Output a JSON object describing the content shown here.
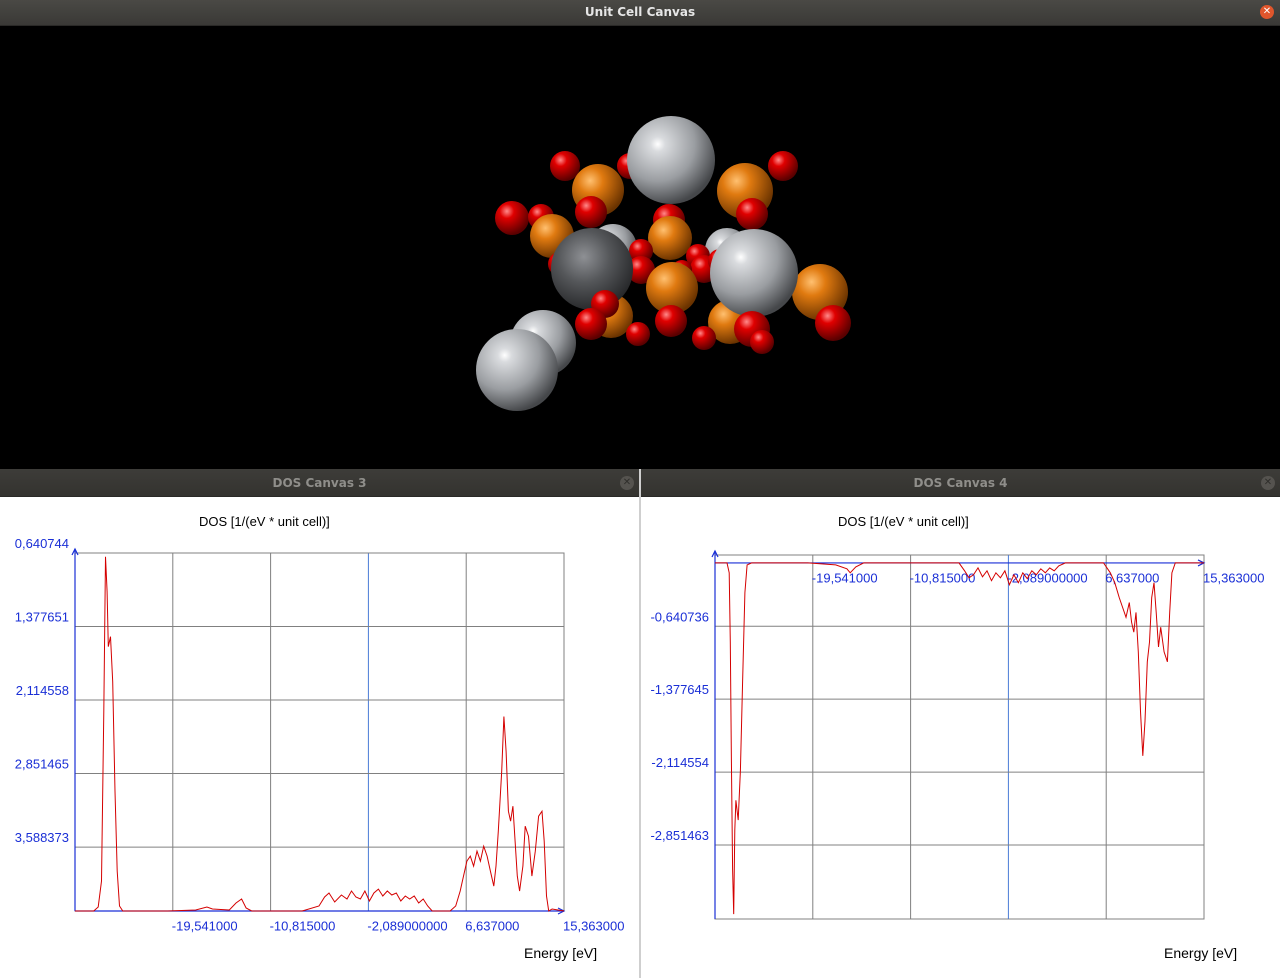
{
  "window": {
    "title": "Unit Cell Canvas"
  },
  "colors": {
    "dos_line": "#d40000",
    "axis": "#1a2fd6",
    "grid": "#808080",
    "fermi": "#4a7ad6",
    "atom_gray": "#b9bcc0",
    "atom_orange": "#e07a10",
    "atom_red": "#cc0000"
  },
  "icons": {
    "close": "close-icon"
  },
  "dos3": {
    "window_title": "DOS Canvas 3",
    "chart_title": "DOS [1/(eV * unit cell)]",
    "xlabel": "Energy [eV]",
    "x_ticks": [
      "-19,541000",
      "-10,815000",
      "-2,089000000",
      "6,637000",
      "15,363000"
    ],
    "y_ticks": [
      "3,588373",
      "2,851465",
      "2,114558",
      "1,377651",
      "0,640744"
    ]
  },
  "dos4": {
    "window_title": "DOS Canvas 4",
    "chart_title": "DOS [1/(eV * unit cell)]",
    "xlabel": "Energy [eV]",
    "x_ticks": [
      "-19,541000",
      "-10,815000",
      "-2,089000000",
      "6,637000",
      "15,363000"
    ],
    "y_ticks": [
      "-0,640736",
      "-1,377645",
      "-2,114554",
      "-2,851463"
    ]
  },
  "chart_data": [
    {
      "type": "line",
      "title": "DOS [1/(eV * unit cell)]",
      "xlabel": "Energy [eV]",
      "ylabel": "",
      "xlim": [
        -28.267,
        15.363
      ],
      "ylim": [
        0,
        3.588373
      ],
      "grid": true,
      "x_ticks": [
        -19.541,
        -10.815,
        -2.089,
        6.637,
        15.363
      ],
      "y_ticks": [
        0.640744,
        1.377651,
        2.114558,
        2.851465,
        3.588373
      ],
      "series": [
        {
          "values": [
            [
              -28.27,
              0
            ],
            [
              -26.6,
              0
            ],
            [
              -26.2,
              0.04
            ],
            [
              -25.9,
              0.3
            ],
            [
              -25.7,
              2.0
            ],
            [
              -25.55,
              3.55
            ],
            [
              -25.4,
              3.2
            ],
            [
              -25.3,
              2.65
            ],
            [
              -25.1,
              2.75
            ],
            [
              -24.9,
              2.3
            ],
            [
              -24.7,
              1.2
            ],
            [
              -24.5,
              0.4
            ],
            [
              -24.3,
              0.05
            ],
            [
              -24.0,
              0
            ],
            [
              -20.0,
              0
            ],
            [
              -17.5,
              0.01
            ],
            [
              -16.5,
              0.04
            ],
            [
              -16.0,
              0.02
            ],
            [
              -14.5,
              0.01
            ],
            [
              -13.9,
              0.08
            ],
            [
              -13.4,
              0.12
            ],
            [
              -13.0,
              0.03
            ],
            [
              -12.5,
              0
            ],
            [
              -8.0,
              0
            ],
            [
              -6.5,
              0.05
            ],
            [
              -6.0,
              0.14
            ],
            [
              -5.6,
              0.18
            ],
            [
              -5.1,
              0.09
            ],
            [
              -4.5,
              0.16
            ],
            [
              -4.0,
              0.12
            ],
            [
              -3.6,
              0.2
            ],
            [
              -3.2,
              0.14
            ],
            [
              -2.8,
              0.12
            ],
            [
              -2.4,
              0.2
            ],
            [
              -2.0,
              0.1
            ],
            [
              -1.6,
              0.18
            ],
            [
              -1.2,
              0.22
            ],
            [
              -0.8,
              0.15
            ],
            [
              -0.4,
              0.2
            ],
            [
              0,
              0.16
            ],
            [
              0.4,
              0.18
            ],
            [
              0.8,
              0.1
            ],
            [
              1.2,
              0.15
            ],
            [
              1.6,
              0.12
            ],
            [
              2.0,
              0.15
            ],
            [
              2.4,
              0.08
            ],
            [
              2.8,
              0.12
            ],
            [
              3.2,
              0.05
            ],
            [
              3.6,
              0
            ],
            [
              5.2,
              0
            ],
            [
              5.7,
              0.05
            ],
            [
              6.1,
              0.2
            ],
            [
              6.4,
              0.35
            ],
            [
              6.7,
              0.5
            ],
            [
              7.0,
              0.55
            ],
            [
              7.3,
              0.45
            ],
            [
              7.6,
              0.6
            ],
            [
              7.9,
              0.5
            ],
            [
              8.2,
              0.65
            ],
            [
              8.5,
              0.55
            ],
            [
              8.8,
              0.4
            ],
            [
              9.1,
              0.25
            ],
            [
              9.3,
              0.45
            ],
            [
              9.5,
              0.8
            ],
            [
              9.8,
              1.4
            ],
            [
              10.0,
              1.95
            ],
            [
              10.2,
              1.6
            ],
            [
              10.4,
              1.0
            ],
            [
              10.6,
              0.9
            ],
            [
              10.8,
              1.05
            ],
            [
              11.0,
              0.7
            ],
            [
              11.2,
              0.35
            ],
            [
              11.4,
              0.2
            ],
            [
              11.7,
              0.45
            ],
            [
              11.9,
              0.85
            ],
            [
              12.2,
              0.75
            ],
            [
              12.5,
              0.35
            ],
            [
              12.8,
              0.6
            ],
            [
              13.1,
              0.95
            ],
            [
              13.4,
              1.0
            ],
            [
              13.6,
              0.7
            ],
            [
              13.8,
              0.15
            ],
            [
              14.0,
              0
            ],
            [
              14.3,
              0.02
            ],
            [
              15.36,
              0
            ]
          ]
        }
      ]
    },
    {
      "type": "line",
      "title": "DOS [1/(eV * unit cell)]",
      "xlabel": "Energy [eV]",
      "ylabel": "",
      "xlim": [
        -28.267,
        15.363
      ],
      "ylim": [
        -3.6,
        0.08
      ],
      "grid": true,
      "x_ticks": [
        -19.541,
        -10.815,
        -2.089,
        6.637,
        15.363
      ],
      "y_ticks": [
        -0.640736,
        -1.377645,
        -2.114554,
        -2.851463
      ],
      "series": [
        {
          "values": [
            [
              -28.27,
              0
            ],
            [
              -27.2,
              0
            ],
            [
              -27.0,
              -0.1
            ],
            [
              -26.9,
              -0.8
            ],
            [
              -26.8,
              -2.0
            ],
            [
              -26.7,
              -3.1
            ],
            [
              -26.6,
              -3.55
            ],
            [
              -26.5,
              -2.7
            ],
            [
              -26.4,
              -2.4
            ],
            [
              -26.2,
              -2.6
            ],
            [
              -26.0,
              -2.1
            ],
            [
              -25.8,
              -1.2
            ],
            [
              -25.6,
              -0.3
            ],
            [
              -25.4,
              -0.02
            ],
            [
              -25.0,
              0
            ],
            [
              -20.0,
              0
            ],
            [
              -17.5,
              -0.02
            ],
            [
              -16.5,
              -0.06
            ],
            [
              -16.2,
              -0.1
            ],
            [
              -15.7,
              -0.04
            ],
            [
              -15.0,
              0
            ],
            [
              -6.5,
              0
            ],
            [
              -6.0,
              -0.08
            ],
            [
              -5.6,
              -0.15
            ],
            [
              -5.2,
              -0.12
            ],
            [
              -4.8,
              -0.05
            ],
            [
              -4.4,
              -0.14
            ],
            [
              -4.0,
              -0.08
            ],
            [
              -3.6,
              -0.18
            ],
            [
              -3.2,
              -0.1
            ],
            [
              -2.8,
              -0.15
            ],
            [
              -2.4,
              -0.08
            ],
            [
              -2.0,
              -0.22
            ],
            [
              -1.6,
              -0.12
            ],
            [
              -1.2,
              -0.2
            ],
            [
              -0.8,
              -0.1
            ],
            [
              -0.4,
              -0.16
            ],
            [
              0,
              -0.08
            ],
            [
              0.4,
              -0.12
            ],
            [
              0.8,
              -0.06
            ],
            [
              1.2,
              -0.1
            ],
            [
              1.6,
              -0.05
            ],
            [
              2.0,
              -0.08
            ],
            [
              2.4,
              -0.03
            ],
            [
              3.0,
              0
            ],
            [
              6.4,
              0
            ],
            [
              7.0,
              -0.1
            ],
            [
              7.4,
              -0.2
            ],
            [
              7.8,
              -0.35
            ],
            [
              8.1,
              -0.45
            ],
            [
              8.4,
              -0.55
            ],
            [
              8.7,
              -0.4
            ],
            [
              8.9,
              -0.6
            ],
            [
              9.1,
              -0.7
            ],
            [
              9.3,
              -0.5
            ],
            [
              9.5,
              -0.9
            ],
            [
              9.7,
              -1.5
            ],
            [
              9.9,
              -1.95
            ],
            [
              10.1,
              -1.6
            ],
            [
              10.3,
              -1.0
            ],
            [
              10.5,
              -0.8
            ],
            [
              10.7,
              -0.35
            ],
            [
              10.9,
              -0.2
            ],
            [
              11.1,
              -0.5
            ],
            [
              11.3,
              -0.85
            ],
            [
              11.5,
              -0.65
            ],
            [
              11.8,
              -0.9
            ],
            [
              12.1,
              -1.0
            ],
            [
              12.3,
              -0.5
            ],
            [
              12.5,
              -0.1
            ],
            [
              12.8,
              0
            ],
            [
              15.36,
              0
            ]
          ]
        }
      ]
    }
  ]
}
